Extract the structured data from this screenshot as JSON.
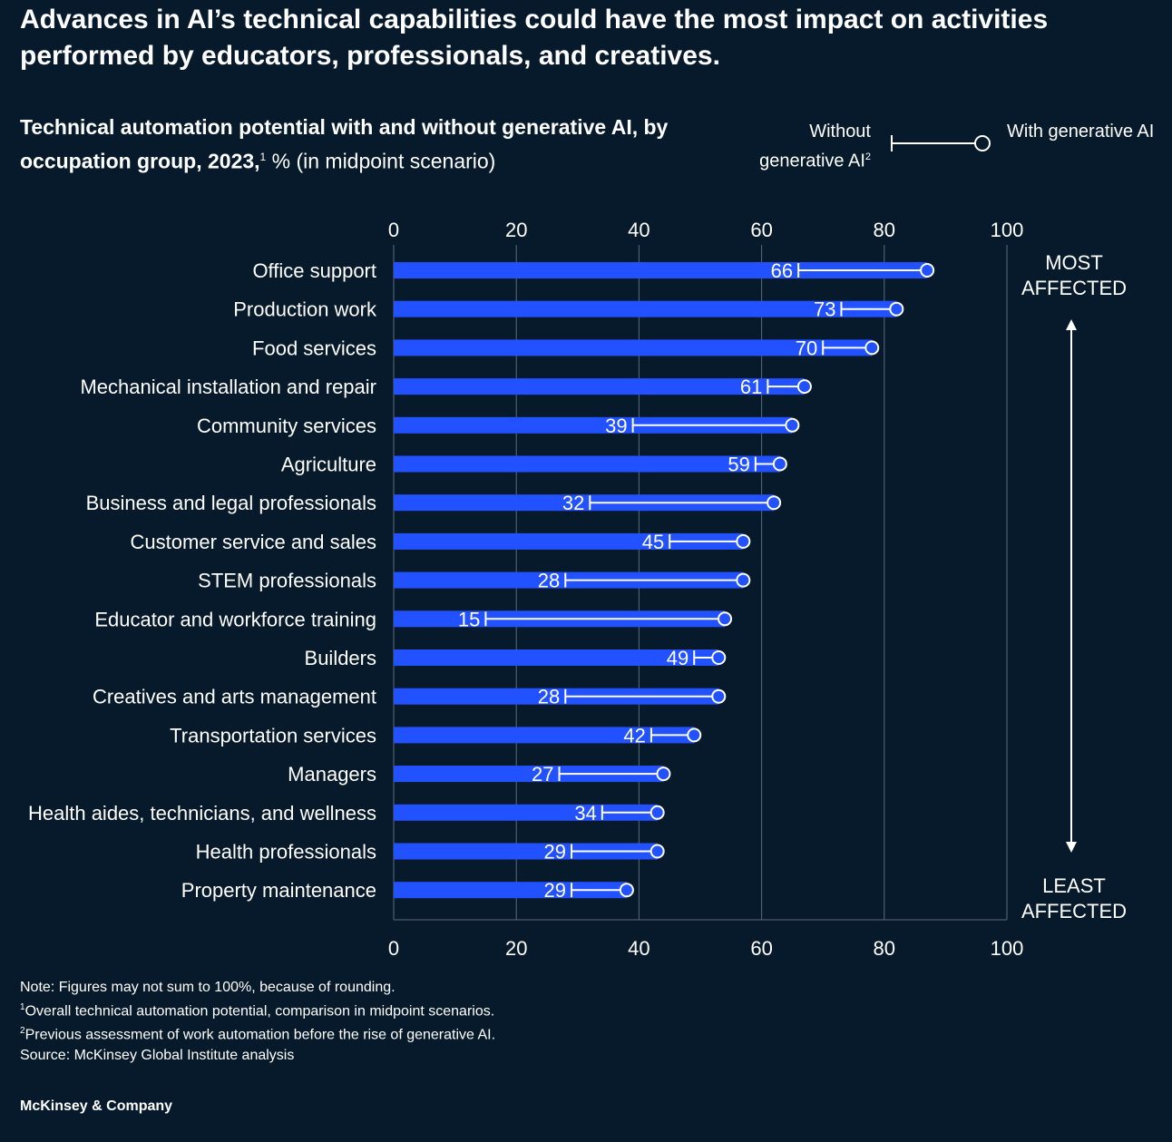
{
  "headline": "Advances in AI’s technical capabilities could have the most impact on activities performed by educators, professionals, and creatives.",
  "subtitle": {
    "bold": "Technical automation potential with and without generative AI, by occupation group, 2023,",
    "sup": "1",
    "rest": " % (in midpoint scenario)"
  },
  "legend": {
    "without_label": "Without generative AI",
    "without_sup": "2",
    "with_label": "With generative AI"
  },
  "side_labels": {
    "top": "MOST AFFECTED",
    "bottom": "LEAST AFFECTED"
  },
  "notes": {
    "note": "Note: Figures may not sum to 100%, because of rounding.",
    "fn1_sup": "1",
    "fn1": "Overall technical automation potential, comparison in midpoint scenarios.",
    "fn2_sup": "2",
    "fn2": "Previous assessment of work automation before the rise of generative AI.",
    "source": "Source: McKinsey Global Institute analysis"
  },
  "brand": "McKinsey & Company",
  "colors": {
    "background": "#071a2b",
    "bar": "#2251ff",
    "text": "#ffffff",
    "grid": "#5d6b78"
  },
  "chart_data": {
    "type": "bar",
    "orientation": "horizontal",
    "xlim": [
      0,
      100
    ],
    "ticks": [
      0,
      20,
      40,
      60,
      80,
      100
    ],
    "grid": true,
    "categories": [
      "Office support",
      "Production work",
      "Food services",
      "Mechanical installation and repair",
      "Community services",
      "Agriculture",
      "Business and legal professionals",
      "Customer service and sales",
      "STEM professionals",
      "Educator and workforce training",
      "Builders",
      "Creatives and arts management",
      "Transportation services",
      "Managers",
      "Health aides, technicians, and wellness",
      "Health professionals",
      "Property maintenance"
    ],
    "series": [
      {
        "name": "Without generative AI",
        "values": [
          66,
          73,
          70,
          61,
          39,
          59,
          32,
          45,
          28,
          15,
          49,
          28,
          42,
          27,
          34,
          29,
          29
        ]
      },
      {
        "name": "With generative AI",
        "values": [
          87,
          82,
          78,
          67,
          65,
          63,
          62,
          57,
          57,
          54,
          53,
          53,
          49,
          44,
          43,
          43,
          38
        ]
      }
    ]
  }
}
